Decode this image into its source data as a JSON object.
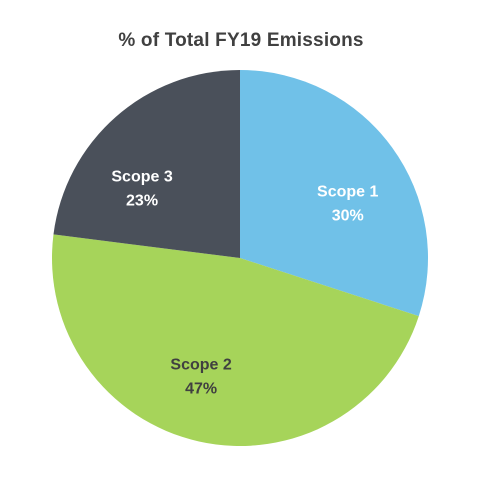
{
  "chart_data": {
    "type": "pie",
    "title": "% of Total FY19 Emissions",
    "slices": [
      {
        "label": "Scope 1",
        "percent_text": "30%",
        "value": 30,
        "color": "#70C1E8",
        "label_color": "#FFFFFF"
      },
      {
        "label": "Scope 2",
        "percent_text": "47%",
        "value": 47,
        "color": "#A6D45A",
        "label_color": "#404040"
      },
      {
        "label": "Scope 3",
        "percent_text": "23%",
        "value": 23,
        "color": "#4A505A",
        "label_color": "#FFFFFF"
      }
    ],
    "start_angle_deg": 0,
    "direction": "clockwise",
    "legend": "none",
    "data_labels": "inside"
  }
}
